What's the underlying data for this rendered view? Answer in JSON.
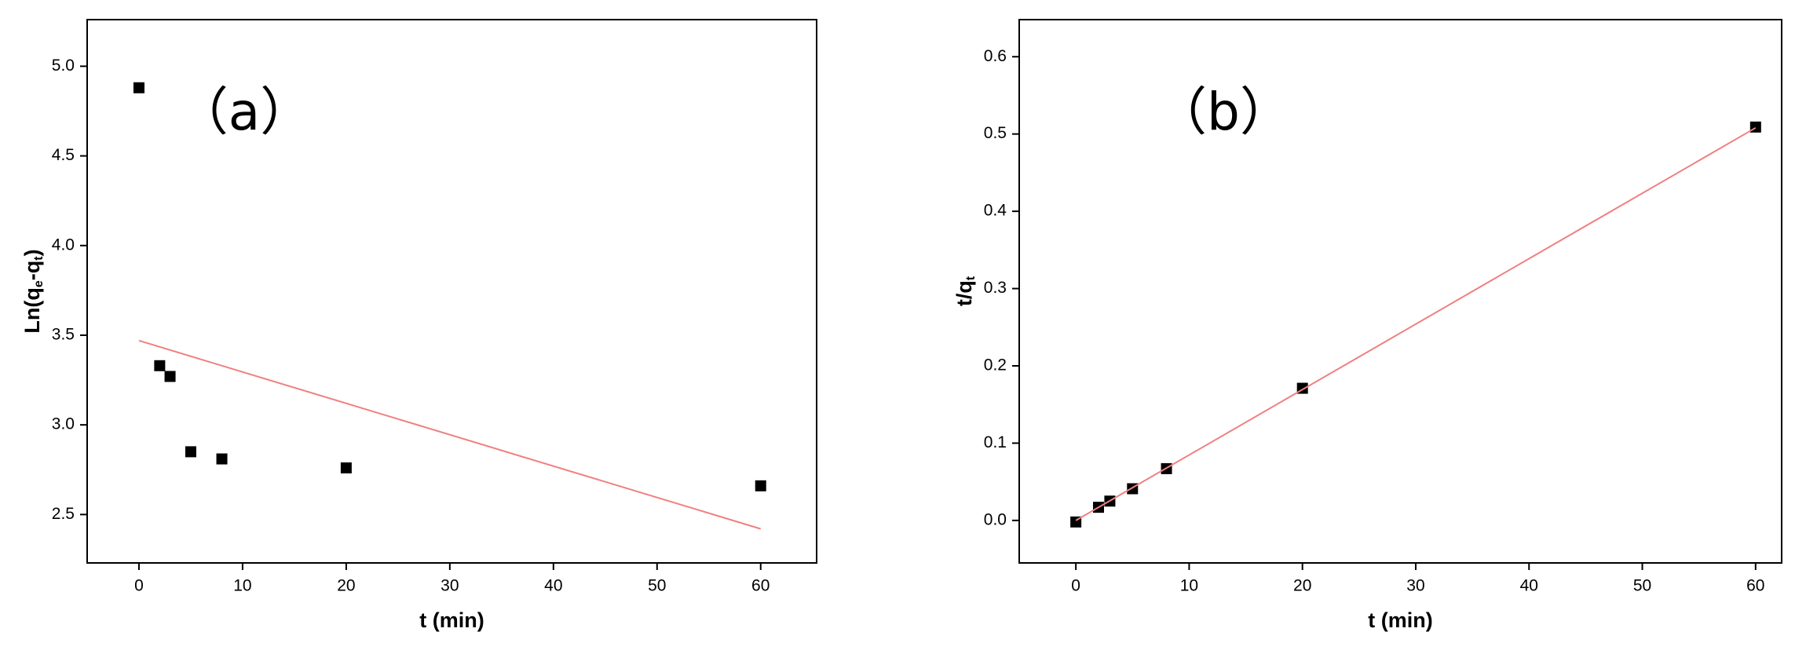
{
  "chart_data": [
    {
      "type": "scatter",
      "annotation": "（a）",
      "x_label": "t (min)",
      "y_label_parts": [
        "Ln(q",
        "e",
        "-q",
        "t",
        ")"
      ],
      "xlim": [
        -5,
        65.4
      ],
      "ylim": [
        2.23,
        5.26
      ],
      "xticks": [
        0,
        10,
        20,
        30,
        40,
        50,
        60
      ],
      "yticks": [
        2.5,
        {
          "value": 3.0,
          "label": "3.0"
        },
        3.5,
        {
          "value": 4.0,
          "label": "4.0"
        },
        4.5,
        {
          "value": 5.0,
          "label": "5.0"
        }
      ],
      "series": [
        {
          "mode": "markers",
          "color": "#000000",
          "x": [
            0,
            2,
            3,
            5,
            8,
            20,
            60
          ],
          "values": [
            4.88,
            3.33,
            3.27,
            2.85,
            2.81,
            2.76,
            2.66
          ]
        },
        {
          "mode": "line",
          "color": "#f08080",
          "x": [
            0,
            60
          ],
          "values": [
            3.47,
            2.42
          ]
        }
      ]
    },
    {
      "type": "scatter",
      "annotation": "（b）",
      "x_label": "t (min)",
      "y_label_parts": [
        "t/q",
        "t"
      ],
      "xlim": [
        -5,
        62.3
      ],
      "ylim": [
        -0.055,
        0.648
      ],
      "xticks": [
        0,
        10,
        20,
        30,
        40,
        50,
        60
      ],
      "yticks": [
        {
          "value": 0.0,
          "label": "0.0"
        },
        0.1,
        0.2,
        0.3,
        0.4,
        0.5,
        0.6
      ],
      "series": [
        {
          "mode": "markers",
          "color": "#000000",
          "x": [
            0,
            2,
            3,
            5,
            8,
            20,
            60
          ],
          "values": [
            -0.002,
            0.017,
            0.025,
            0.041,
            0.067,
            0.171,
            0.509
          ]
        },
        {
          "mode": "line",
          "color": "#f08080",
          "x": [
            0,
            60
          ],
          "values": [
            0.0,
            0.508
          ]
        }
      ]
    }
  ]
}
